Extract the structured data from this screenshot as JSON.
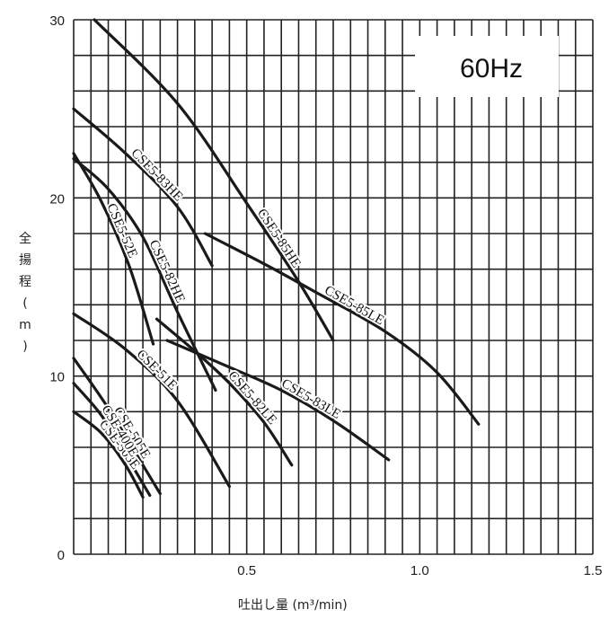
{
  "chart_data": {
    "type": "line",
    "title": "60Hz",
    "xlabel": "吐出し量 (m³/min)",
    "ylabel": "全揚程 (m)",
    "xlim": [
      0,
      1.5
    ],
    "ylim": [
      0,
      30
    ],
    "x_ticks": [
      "0.5",
      "1.0",
      "1.5"
    ],
    "y_ticks": [
      "0",
      "10",
      "20",
      "30"
    ],
    "grid": true,
    "series": [
      {
        "name": "CSE5-85HE",
        "x": [
          0.06,
          0.3,
          0.5,
          0.65,
          0.75
        ],
        "y": [
          30,
          25.3,
          19.7,
          15.3,
          12
        ]
      },
      {
        "name": "CSE5-85LE",
        "x": [
          0.38,
          0.55,
          0.7,
          0.9,
          1.05,
          1.17
        ],
        "y": [
          18,
          16.3,
          14.7,
          12.5,
          10.2,
          7.3
        ]
      },
      {
        "name": "CSE5-83HE",
        "x": [
          0,
          0.15,
          0.3,
          0.4
        ],
        "y": [
          25,
          22.5,
          19.5,
          16.2
        ]
      },
      {
        "name": "CSE5-83LE",
        "x": [
          0.27,
          0.45,
          0.6,
          0.75,
          0.91
        ],
        "y": [
          12,
          10.5,
          9.2,
          7.5,
          5.3
        ]
      },
      {
        "name": "CSE5-82HE",
        "x": [
          0,
          0.1,
          0.2,
          0.3,
          0.41
        ],
        "y": [
          22.2,
          20.5,
          17.8,
          13.6,
          9.2
        ]
      },
      {
        "name": "CSE5-82LE",
        "x": [
          0.24,
          0.35,
          0.45,
          0.55,
          0.63
        ],
        "y": [
          13.2,
          11.4,
          9.6,
          7.4,
          5
        ]
      },
      {
        "name": "CSE5-52E",
        "x": [
          0,
          0.08,
          0.16,
          0.23
        ],
        "y": [
          22.5,
          19.8,
          16.2,
          11.8
        ]
      },
      {
        "name": "CSE-51E",
        "x": [
          0,
          0.15,
          0.3,
          0.45
        ],
        "y": [
          13.5,
          11.5,
          8.6,
          3.8
        ]
      },
      {
        "name": "CSE-505E",
        "x": [
          0,
          0.1,
          0.2,
          0.25
        ],
        "y": [
          11,
          8.2,
          5,
          3.4
        ]
      },
      {
        "name": "CSE-503E",
        "x": [
          0,
          0.08,
          0.15,
          0.2
        ],
        "y": [
          8,
          6.8,
          5,
          3.2
        ]
      },
      {
        "name": "CSE-400E",
        "x": [
          0,
          0.08,
          0.15,
          0.22
        ],
        "y": [
          9.6,
          7.8,
          5.6,
          3.3
        ]
      }
    ]
  }
}
